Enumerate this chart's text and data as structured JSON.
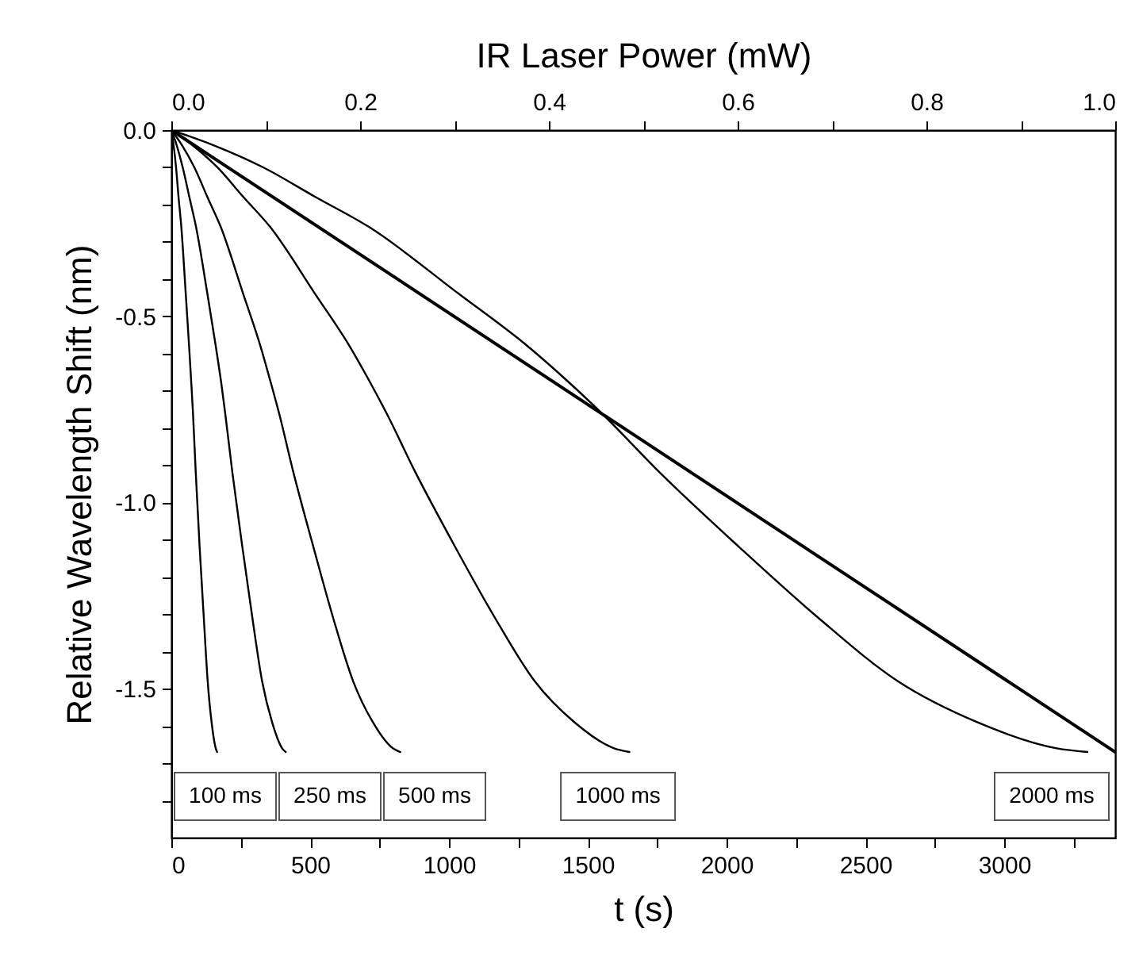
{
  "chart_data": {
    "type": "line",
    "xlabel": "t (s)",
    "ylabel": "Relative Wavelength Shift (nm)",
    "x2label": "IR Laser Power (mW)",
    "xlim": [
      0,
      3400
    ],
    "ylim": [
      -1.9,
      0
    ],
    "x2lim": [
      0,
      1
    ],
    "xticks": [
      0,
      {
        "value": 250,
        "label": null
      },
      500,
      {
        "value": 750,
        "label": null
      },
      1000,
      {
        "value": 1250,
        "label": null
      },
      1500,
      {
        "value": 1750,
        "label": null
      },
      2000,
      {
        "value": 2250,
        "label": null
      },
      2500,
      {
        "value": 2750,
        "label": null
      },
      3000,
      {
        "value": 3250,
        "label": null
      }
    ],
    "yticks": [
      {
        "value": 0,
        "label": "0.0"
      },
      {
        "value": -0.1,
        "label": null
      },
      {
        "value": -0.2,
        "label": null
      },
      {
        "value": -0.3,
        "label": null
      },
      {
        "value": -0.4,
        "label": null
      },
      -0.5,
      {
        "value": -0.6,
        "label": null
      },
      {
        "value": -0.7,
        "label": null
      },
      {
        "value": -0.8,
        "label": null
      },
      {
        "value": -0.9,
        "label": null
      },
      {
        "value": -1,
        "label": "-1.0"
      },
      {
        "value": -1.1,
        "label": null
      },
      {
        "value": -1.2,
        "label": null
      },
      {
        "value": -1.3,
        "label": null
      },
      {
        "value": -1.4,
        "label": null
      },
      -1.5,
      {
        "value": -1.6,
        "label": null
      },
      {
        "value": -1.7,
        "label": null
      },
      {
        "value": -1.8,
        "label": null
      }
    ],
    "x2ticks": [
      {
        "value": 0,
        "label": "0.0"
      },
      {
        "value": 0.1,
        "label": null
      },
      0.2,
      {
        "value": 0.3,
        "label": null
      },
      0.4,
      {
        "value": 0.5,
        "label": null
      },
      0.6,
      {
        "value": 0.7,
        "label": null
      },
      0.8,
      {
        "value": 0.9,
        "label": null
      },
      {
        "value": 1,
        "label": "1.0"
      }
    ],
    "series": [
      {
        "name": "100 ms",
        "color": "#000000",
        "x": [
          0,
          8,
          17,
          26,
          36,
          52,
          64,
          72,
          78,
          88,
          102,
          117,
          131,
          145,
          160,
          165
        ],
        "values": [
          0,
          -0.04,
          -0.1,
          -0.18,
          -0.26,
          -0.44,
          -0.58,
          -0.68,
          -0.76,
          -0.92,
          -1.12,
          -1.31,
          -1.48,
          -1.59,
          -1.66,
          -1.67
        ]
      },
      {
        "name": "250 ms",
        "color": "#000000",
        "x": [
          0,
          19,
          41,
          65,
          89,
          130,
          160,
          180,
          194,
          220,
          256,
          292,
          327,
          363,
          399,
          412
        ],
        "values": [
          0,
          -0.04,
          -0.1,
          -0.18,
          -0.26,
          -0.44,
          -0.58,
          -0.68,
          -0.76,
          -0.92,
          -1.12,
          -1.31,
          -1.48,
          -1.59,
          -1.66,
          -1.67
        ]
      },
      {
        "name": "500 ms",
        "color": "#000000",
        "x": [
          0,
          38,
          83,
          130,
          178,
          259,
          321,
          359,
          388,
          440,
          512,
          583,
          655,
          726,
          798,
          825
        ],
        "values": [
          0,
          -0.04,
          -0.1,
          -0.18,
          -0.26,
          -0.44,
          -0.58,
          -0.68,
          -0.76,
          -0.92,
          -1.12,
          -1.31,
          -1.48,
          -1.59,
          -1.66,
          -1.67
        ]
      },
      {
        "name": "1000 ms",
        "color": "#000000",
        "x": [
          0,
          75,
          166,
          260,
          356,
          518,
          642,
          718,
          775,
          880,
          1023,
          1166,
          1309,
          1452,
          1595,
          1650
        ],
        "values": [
          0,
          -0.04,
          -0.1,
          -0.18,
          -0.26,
          -0.44,
          -0.58,
          -0.68,
          -0.76,
          -0.92,
          -1.12,
          -1.31,
          -1.48,
          -1.59,
          -1.66,
          -1.67
        ]
      },
      {
        "name": "2000 ms",
        "color": "#000000",
        "x": [
          0,
          150,
          331,
          520,
          712,
          1036,
          1283,
          1436,
          1550,
          1760,
          2046,
          2331,
          2617,
          2903,
          3189,
          3300
        ],
        "values": [
          0,
          -0.04,
          -0.1,
          -0.18,
          -0.26,
          -0.44,
          -0.58,
          -0.68,
          -0.76,
          -0.92,
          -1.12,
          -1.31,
          -1.48,
          -1.59,
          -1.66,
          -1.67
        ]
      },
      {
        "color": "#000000",
        "axis": "x2",
        "x": [
          0,
          1
        ],
        "values": [
          0,
          -1.67
        ]
      }
    ]
  }
}
